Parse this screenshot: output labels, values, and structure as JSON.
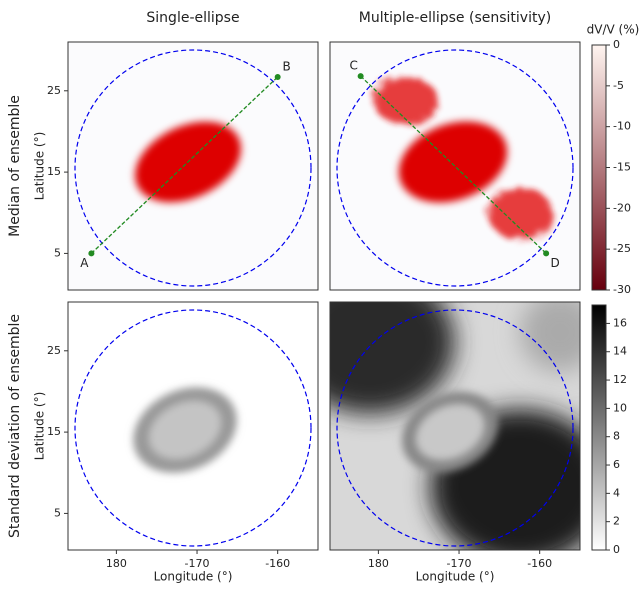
{
  "chart_data": [
    {
      "type": "heatmap",
      "title": "Single-ellipse",
      "row_title": "Median of ensemble",
      "ylabel": "Latitude (°)",
      "xlim": [
        -186,
        -155
      ],
      "ylim": [
        0.5,
        31
      ],
      "yticks": [
        5,
        15,
        25
      ],
      "profile": {
        "color": "#228b22",
        "points": [
          {
            "label": "A",
            "x": -183.1,
            "y": 5
          },
          {
            "label": "B",
            "x": -160,
            "y": 26.7
          }
        ]
      }
    },
    {
      "type": "heatmap",
      "title": "Multiple-ellipse (sensitivity)",
      "xlim": [
        -186,
        -155
      ],
      "ylim": [
        0.5,
        31
      ],
      "profile": {
        "color": "#228b22",
        "points": [
          {
            "label": "C",
            "x": -182.2,
            "y": 26.8
          },
          {
            "label": "D",
            "x": -159.2,
            "y": 5
          }
        ]
      },
      "colorbar": {
        "label": "dV/V (%)",
        "lim": [
          -30,
          0
        ],
        "ticks": [
          0,
          -5,
          -10,
          -15,
          -20,
          -25,
          -30
        ],
        "colors": [
          "#67000d",
          "#fff5f0"
        ]
      }
    },
    {
      "type": "heatmap",
      "row_title": "Standard deviation of ensemble",
      "ylabel": "Latitude (°)",
      "xlabel": "Longitude (°)",
      "xlim": [
        -186,
        -155
      ],
      "ylim": [
        0.5,
        31
      ],
      "xticks": [
        {
          "value": -180,
          "label": "180"
        },
        -170,
        -160
      ],
      "yticks": [
        5,
        15,
        25
      ]
    },
    {
      "type": "heatmap",
      "xlabel": "Longitude (°)",
      "xlim": [
        -186,
        -155
      ],
      "ylim": [
        0.5,
        31
      ],
      "xticks": [
        {
          "value": -180,
          "label": "180"
        },
        -170,
        -160
      ],
      "colorbar": {
        "lim": [
          0,
          17.3
        ],
        "ticks": [
          0,
          2,
          4,
          6,
          8,
          10,
          12,
          14,
          16
        ],
        "colors": [
          "#ffffff",
          "#000000"
        ]
      }
    }
  ]
}
